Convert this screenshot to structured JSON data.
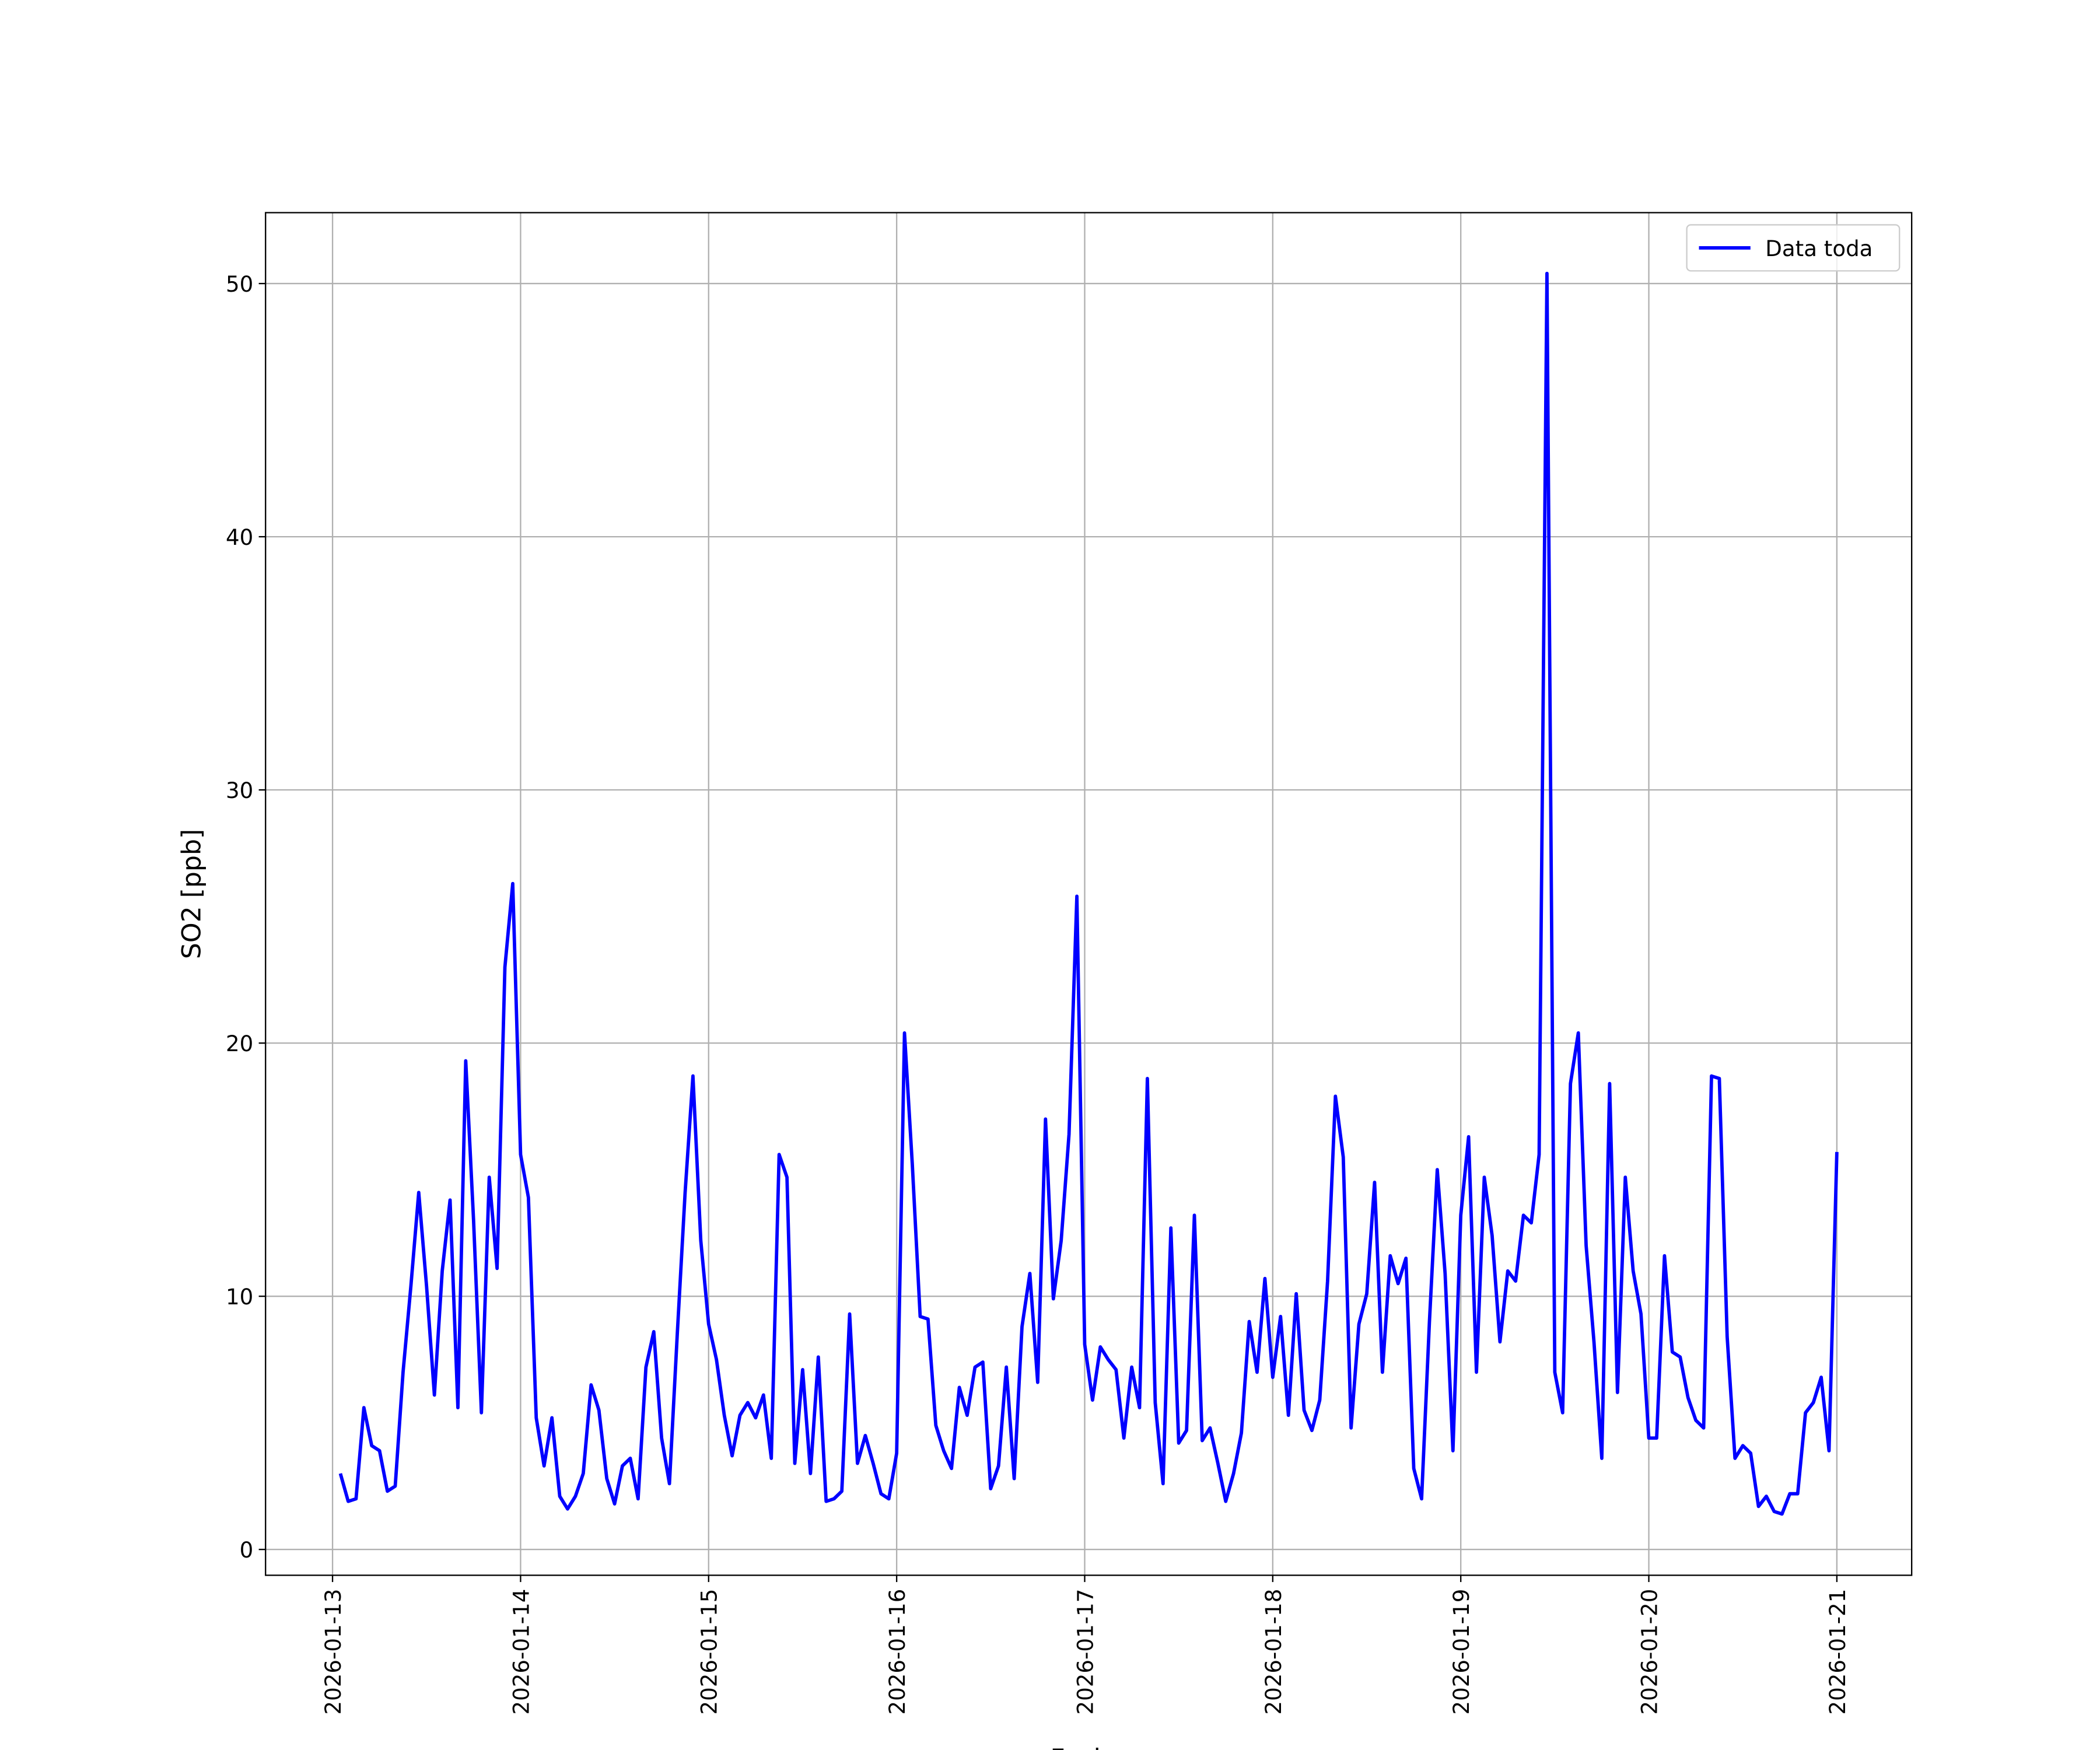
{
  "chart_data": {
    "type": "line",
    "xlabel": "Fecha",
    "ylabel": "SO2 [ppb]",
    "x": [
      "2026-01-13 01:00",
      "2026-01-13 02:00",
      "2026-01-13 03:00",
      "2026-01-13 04:00",
      "2026-01-13 05:00",
      "2026-01-13 06:00",
      "2026-01-13 07:00",
      "2026-01-13 08:00",
      "2026-01-13 09:00",
      "2026-01-13 10:00",
      "2026-01-13 11:00",
      "2026-01-13 12:00",
      "2026-01-13 13:00",
      "2026-01-13 14:00",
      "2026-01-13 15:00",
      "2026-01-13 16:00",
      "2026-01-13 17:00",
      "2026-01-13 18:00",
      "2026-01-13 19:00",
      "2026-01-13 20:00",
      "2026-01-13 21:00",
      "2026-01-13 22:00",
      "2026-01-13 23:00",
      "2026-01-14 00:00",
      "2026-01-14 01:00",
      "2026-01-14 02:00",
      "2026-01-14 03:00",
      "2026-01-14 04:00",
      "2026-01-14 05:00",
      "2026-01-14 06:00",
      "2026-01-14 07:00",
      "2026-01-14 08:00",
      "2026-01-14 09:00",
      "2026-01-14 10:00",
      "2026-01-14 11:00",
      "2026-01-14 12:00",
      "2026-01-14 13:00",
      "2026-01-14 14:00",
      "2026-01-14 15:00",
      "2026-01-14 16:00",
      "2026-01-14 17:00",
      "2026-01-14 18:00",
      "2026-01-14 19:00",
      "2026-01-14 20:00",
      "2026-01-14 21:00",
      "2026-01-14 22:00",
      "2026-01-14 23:00",
      "2026-01-15 00:00",
      "2026-01-15 01:00",
      "2026-01-15 02:00",
      "2026-01-15 03:00",
      "2026-01-15 04:00",
      "2026-01-15 05:00",
      "2026-01-15 06:00",
      "2026-01-15 07:00",
      "2026-01-15 08:00",
      "2026-01-15 09:00",
      "2026-01-15 10:00",
      "2026-01-15 11:00",
      "2026-01-15 12:00",
      "2026-01-15 13:00",
      "2026-01-15 14:00",
      "2026-01-15 15:00",
      "2026-01-15 16:00",
      "2026-01-15 17:00",
      "2026-01-15 18:00",
      "2026-01-15 19:00",
      "2026-01-15 20:00",
      "2026-01-15 21:00",
      "2026-01-15 22:00",
      "2026-01-15 23:00",
      "2026-01-16 00:00",
      "2026-01-16 01:00",
      "2026-01-16 02:00",
      "2026-01-16 03:00",
      "2026-01-16 04:00",
      "2026-01-16 05:00",
      "2026-01-16 06:00",
      "2026-01-16 07:00",
      "2026-01-16 08:00",
      "2026-01-16 09:00",
      "2026-01-16 10:00",
      "2026-01-16 11:00",
      "2026-01-16 12:00",
      "2026-01-16 13:00",
      "2026-01-16 14:00",
      "2026-01-16 15:00",
      "2026-01-16 16:00",
      "2026-01-16 17:00",
      "2026-01-16 18:00",
      "2026-01-16 19:00",
      "2026-01-16 20:00",
      "2026-01-16 21:00",
      "2026-01-16 22:00",
      "2026-01-16 23:00",
      "2026-01-17 00:00",
      "2026-01-17 01:00",
      "2026-01-17 02:00",
      "2026-01-17 03:00",
      "2026-01-17 04:00",
      "2026-01-17 05:00",
      "2026-01-17 06:00",
      "2026-01-17 07:00",
      "2026-01-17 08:00",
      "2026-01-17 09:00",
      "2026-01-17 10:00",
      "2026-01-17 11:00",
      "2026-01-17 12:00",
      "2026-01-17 13:00",
      "2026-01-17 14:00",
      "2026-01-17 15:00",
      "2026-01-17 16:00",
      "2026-01-17 17:00",
      "2026-01-17 18:00",
      "2026-01-17 19:00",
      "2026-01-17 20:00",
      "2026-01-17 21:00",
      "2026-01-17 22:00",
      "2026-01-17 23:00",
      "2026-01-18 00:00",
      "2026-01-18 01:00",
      "2026-01-18 02:00",
      "2026-01-18 03:00",
      "2026-01-18 04:00",
      "2026-01-18 05:00",
      "2026-01-18 06:00",
      "2026-01-18 07:00",
      "2026-01-18 08:00",
      "2026-01-18 09:00",
      "2026-01-18 10:00",
      "2026-01-18 11:00",
      "2026-01-18 12:00",
      "2026-01-18 13:00",
      "2026-01-18 14:00",
      "2026-01-18 15:00",
      "2026-01-18 16:00",
      "2026-01-18 17:00",
      "2026-01-18 18:00",
      "2026-01-18 19:00",
      "2026-01-18 20:00",
      "2026-01-18 21:00",
      "2026-01-18 22:00",
      "2026-01-18 23:00",
      "2026-01-19 00:00",
      "2026-01-19 01:00",
      "2026-01-19 02:00",
      "2026-01-19 03:00",
      "2026-01-19 04:00",
      "2026-01-19 05:00",
      "2026-01-19 06:00",
      "2026-01-19 07:00",
      "2026-01-19 08:00",
      "2026-01-19 09:00",
      "2026-01-19 10:00",
      "2026-01-19 11:00",
      "2026-01-19 12:00",
      "2026-01-19 13:00",
      "2026-01-19 14:00",
      "2026-01-19 15:00",
      "2026-01-19 16:00",
      "2026-01-19 17:00",
      "2026-01-19 18:00",
      "2026-01-19 19:00",
      "2026-01-19 20:00",
      "2026-01-19 21:00",
      "2026-01-19 22:00",
      "2026-01-19 23:00",
      "2026-01-20 00:00",
      "2026-01-20 01:00",
      "2026-01-20 02:00",
      "2026-01-20 03:00",
      "2026-01-20 04:00",
      "2026-01-20 05:00",
      "2026-01-20 06:00",
      "2026-01-20 07:00",
      "2026-01-20 08:00",
      "2026-01-20 09:00",
      "2026-01-20 10:00",
      "2026-01-20 11:00",
      "2026-01-20 12:00",
      "2026-01-20 13:00",
      "2026-01-20 14:00",
      "2026-01-20 15:00",
      "2026-01-20 16:00",
      "2026-01-20 17:00",
      "2026-01-20 18:00",
      "2026-01-20 19:00",
      "2026-01-20 20:00",
      "2026-01-20 21:00",
      "2026-01-20 22:00",
      "2026-01-20 23:00",
      "2026-01-21 00:00"
    ],
    "series": [
      {
        "name": "Data toda",
        "color": "#0000ff",
        "values": [
          3.0,
          1.9,
          2.0,
          5.6,
          4.1,
          3.9,
          2.3,
          2.5,
          7.0,
          10.4,
          14.1,
          10.4,
          6.1,
          11.0,
          13.8,
          5.6,
          19.3,
          13.0,
          5.4,
          14.7,
          11.1,
          23.0,
          26.3,
          15.6,
          13.9,
          5.2,
          3.3,
          5.2,
          2.1,
          1.6,
          2.1,
          3.0,
          6.5,
          5.5,
          2.8,
          1.8,
          3.3,
          3.6,
          2.0,
          7.2,
          8.6,
          4.4,
          2.6,
          8.5,
          14.1,
          18.7,
          12.2,
          8.9,
          7.5,
          5.3,
          3.7,
          5.3,
          5.8,
          5.2,
          6.1,
          3.6,
          15.6,
          14.7,
          3.4,
          7.1,
          3.0,
          7.6,
          1.9,
          2.0,
          2.3,
          9.3,
          3.4,
          4.5,
          3.4,
          2.2,
          2.0,
          3.8,
          20.4,
          15.2,
          9.2,
          9.1,
          4.9,
          3.9,
          3.2,
          6.4,
          5.3,
          7.2,
          7.4,
          2.4,
          3.3,
          7.2,
          2.8,
          8.8,
          10.9,
          6.6,
          17.0,
          9.9,
          12.2,
          16.4,
          25.8,
          8.1,
          5.9,
          8.0,
          7.5,
          7.1,
          4.4,
          7.2,
          5.6,
          18.6,
          5.8,
          2.6,
          12.7,
          4.2,
          4.7,
          13.2,
          4.3,
          4.8,
          3.4,
          1.9,
          3.0,
          4.6,
          9.0,
          7.0,
          10.7,
          6.8,
          9.2,
          5.3,
          10.1,
          5.5,
          4.7,
          5.9,
          10.6,
          17.9,
          15.5,
          4.8,
          8.9,
          10.1,
          14.5,
          7.0,
          11.6,
          10.5,
          11.5,
          3.2,
          2.0,
          9.0,
          15.0,
          10.9,
          3.9,
          13.2,
          16.3,
          7.0,
          14.7,
          12.4,
          8.2,
          11.0,
          10.6,
          13.2,
          12.9,
          15.6,
          50.4,
          7.0,
          5.4,
          18.4,
          20.4,
          12.0,
          8.2,
          3.6,
          18.4,
          6.2,
          14.7,
          11.0,
          9.3,
          4.4,
          4.4,
          11.6,
          7.8,
          7.6,
          6.0,
          5.1,
          4.8,
          18.7,
          18.6,
          8.4,
          3.6,
          4.1,
          3.8,
          1.7,
          2.1,
          1.5,
          1.4,
          2.2,
          2.2,
          5.4,
          5.8,
          6.8,
          3.9,
          15.7
        ]
      }
    ],
    "xlim": [
      "2026-01-12 15:27",
      "2026-01-21 09:33"
    ],
    "xticks": [
      "2026-01-13",
      "2026-01-14",
      "2026-01-15",
      "2026-01-16",
      "2026-01-17",
      "2026-01-18",
      "2026-01-19",
      "2026-01-20",
      "2026-01-21"
    ],
    "ylim": [
      -1.02,
      52.8
    ],
    "yticks": [
      0,
      10,
      20,
      30,
      40,
      50
    ],
    "grid": true,
    "legend": "upper right"
  }
}
